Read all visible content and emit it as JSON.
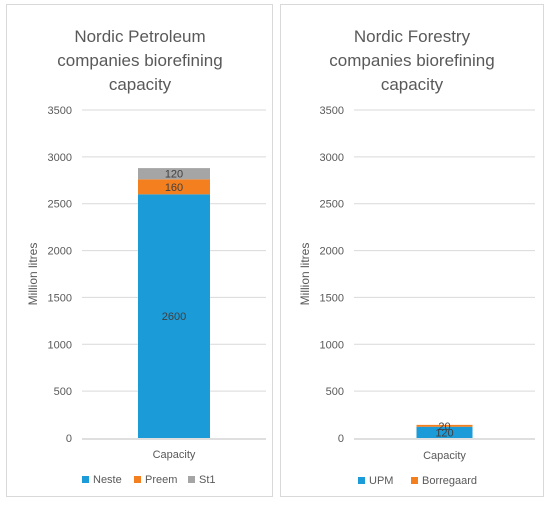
{
  "colors": {
    "blue": "#1b9bd7",
    "orange": "#f47f1f",
    "gray": "#a5a5a5"
  },
  "chart_data": [
    {
      "type": "bar",
      "stacked": true,
      "title": [
        "Nordic Petroleum",
        "companies biorefining",
        "capacity"
      ],
      "ylabel": "Million litres",
      "ylim": [
        0,
        3500
      ],
      "yticks": [
        "0",
        "500",
        "1000",
        "1500",
        "2000",
        "2500",
        "3000",
        "3500"
      ],
      "categories": [
        "Capacity"
      ],
      "legend_position": "bottom",
      "series": [
        {
          "name": "Neste",
          "values": [
            2600
          ],
          "label": "2600",
          "color": "#1b9bd7"
        },
        {
          "name": "Preem",
          "values": [
            160
          ],
          "label": "160",
          "color": "#f47f1f"
        },
        {
          "name": "St1",
          "values": [
            120
          ],
          "label": "120",
          "color": "#a5a5a5"
        }
      ]
    },
    {
      "type": "bar",
      "stacked": true,
      "title": [
        "Nordic Forestry",
        "companies biorefining",
        "capacity"
      ],
      "ylabel": "Million litres",
      "ylim": [
        0,
        3500
      ],
      "yticks": [
        "0",
        "500",
        "1000",
        "1500",
        "2000",
        "2500",
        "3000",
        "3500"
      ],
      "categories": [
        "Capacity"
      ],
      "legend_position": "bottom",
      "series": [
        {
          "name": "UPM",
          "values": [
            120
          ],
          "label": "120",
          "color": "#1b9bd7"
        },
        {
          "name": "Borregaard",
          "values": [
            20
          ],
          "label": "20",
          "color": "#f47f1f"
        }
      ]
    }
  ]
}
